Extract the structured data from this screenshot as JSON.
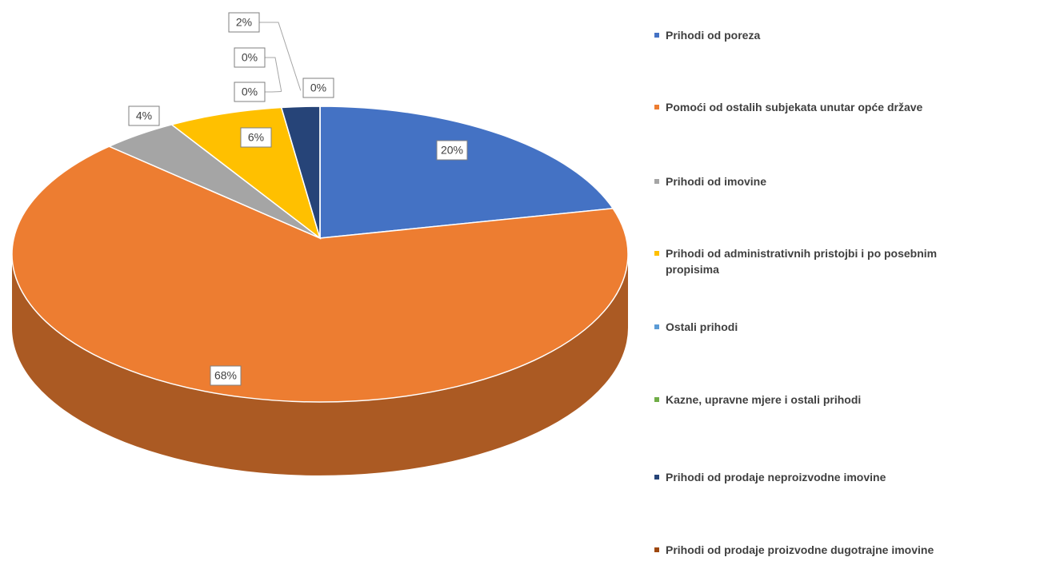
{
  "chart_data": {
    "type": "pie",
    "categories": [
      "Prihodi od poreza",
      "Pomoći od ostalih subjekata unutar opće države",
      "Prihodi od imovine",
      "Prihodi od administrativnih pristojbi i po posebnim propisima",
      "Ostali prihodi",
      "Kazne, upravne mjere i ostali prihodi",
      "Prihodi od prodaje neproizvodne imovine",
      "Prihodi od prodaje proizvodne dugotrajne imovine"
    ],
    "values": [
      20,
      68,
      4,
      6,
      0,
      0,
      2,
      0
    ],
    "value_labels": [
      "20%",
      "68%",
      "4%",
      "6%",
      "0%",
      "0%",
      "2%",
      "0%"
    ],
    "colors": [
      "#4472c4",
      "#ed7d31",
      "#a5a5a5",
      "#ffc000",
      "#5b9bd5",
      "#70ad47",
      "#264478",
      "#9e480e"
    ],
    "legend": "right"
  }
}
